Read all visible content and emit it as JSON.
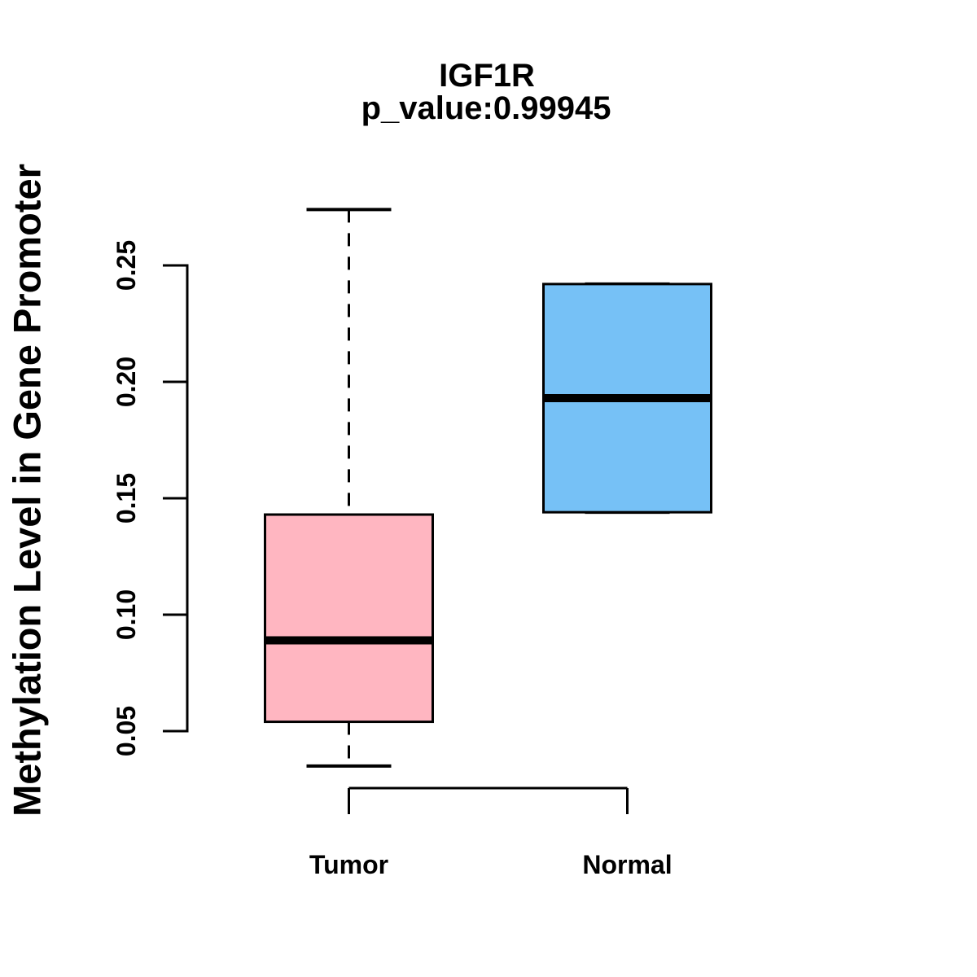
{
  "chart_data": {
    "type": "boxplot",
    "title": "IGF1R",
    "subtitle": "p_value:0.99945",
    "p_value": 0.99945,
    "ylabel": "Methylation Level in Gene Promoter",
    "xlabel": "",
    "ylim": [
      0.03,
      0.28
    ],
    "ytick_range": [
      0.05,
      0.25
    ],
    "grid": false,
    "legend": "none",
    "yticks": [
      {
        "value": 0.05,
        "label": "0.05"
      },
      {
        "value": 0.1,
        "label": "0.10"
      },
      {
        "value": 0.15,
        "label": "0.15"
      },
      {
        "value": 0.2,
        "label": "0.20"
      },
      {
        "value": 0.25,
        "label": "0.25"
      }
    ],
    "groups": [
      {
        "label": "Tumor",
        "color": "#FFB6C1",
        "whisker_low": 0.035,
        "q1": 0.054,
        "median": 0.089,
        "q3": 0.143,
        "whisker_high": 0.274
      },
      {
        "label": "Normal",
        "color": "#76C1F6",
        "whisker_low": 0.144,
        "q1": 0.144,
        "median": 0.193,
        "q3": 0.242,
        "whisker_high": 0.242
      }
    ],
    "line_color": "#000000",
    "median_color": "#000000",
    "background": "#FFFFFF"
  }
}
